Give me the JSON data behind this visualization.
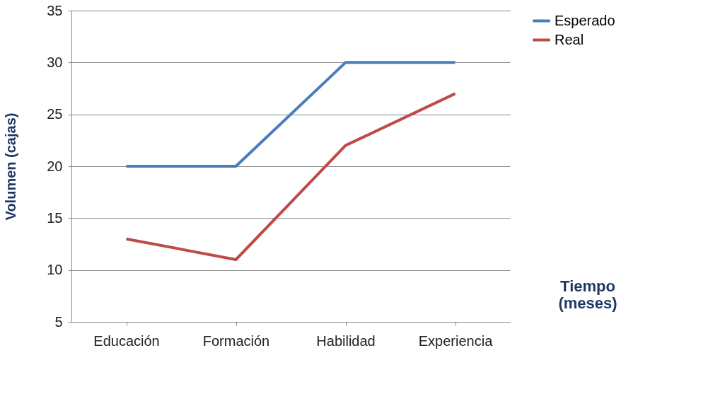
{
  "chart_data": {
    "type": "line",
    "xlabel": "Tiempo (meses)",
    "ylabel": "Volumen (cajas)",
    "categories": [
      "Educación",
      "Formación",
      "Habilidad",
      "Experiencia"
    ],
    "series": [
      {
        "name": "Esperado",
        "color": "#4a7ebb",
        "values": [
          20,
          20,
          30,
          30
        ]
      },
      {
        "name": "Real",
        "color": "#be4b48",
        "values": [
          13,
          11,
          22,
          27
        ]
      }
    ],
    "ylim": [
      5,
      35
    ],
    "yticks": [
      5,
      10,
      15,
      20,
      25,
      30,
      35
    ],
    "grid": "y",
    "legend": "right",
    "marker": "none",
    "line_style": "solid"
  }
}
